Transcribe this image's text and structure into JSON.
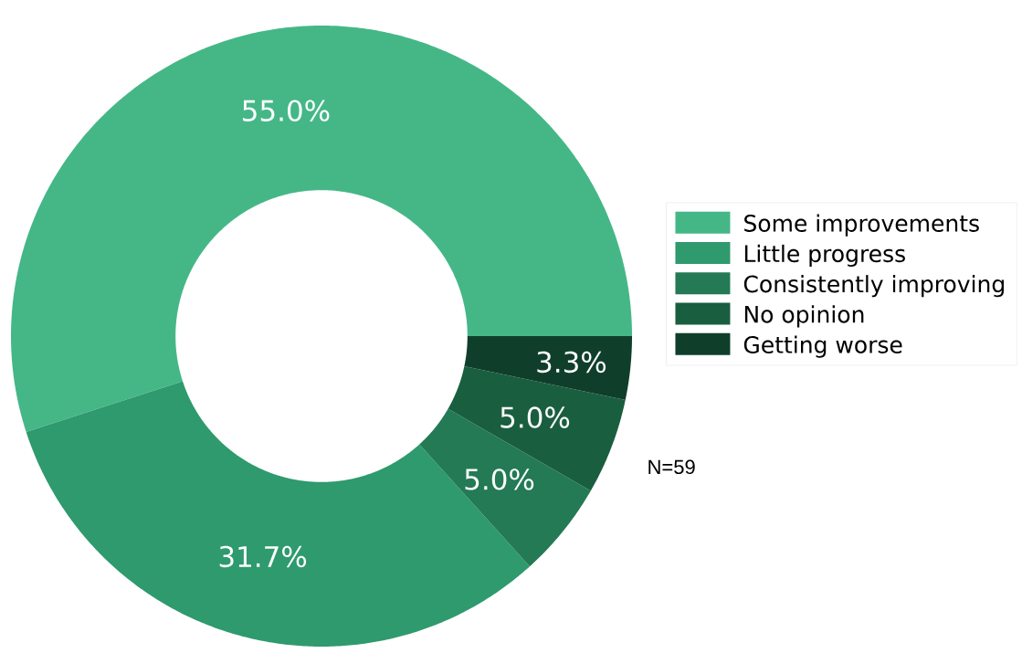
{
  "chart_data": {
    "type": "donut",
    "categories": [
      "Some improvements",
      "Little progress",
      "Consistently improving",
      "No opinion",
      "Getting worse"
    ],
    "values": [
      55.0,
      31.7,
      5.0,
      5.0,
      3.3
    ],
    "colors": [
      "#45b787",
      "#2e9a6e",
      "#237a55",
      "#1a5e40",
      "#0f3f2b"
    ],
    "value_labels": [
      "55.0%",
      "31.7%",
      "5.0%",
      "5.0%",
      "3.3%"
    ],
    "legend": "right",
    "annotations": [
      "N=59"
    ]
  }
}
